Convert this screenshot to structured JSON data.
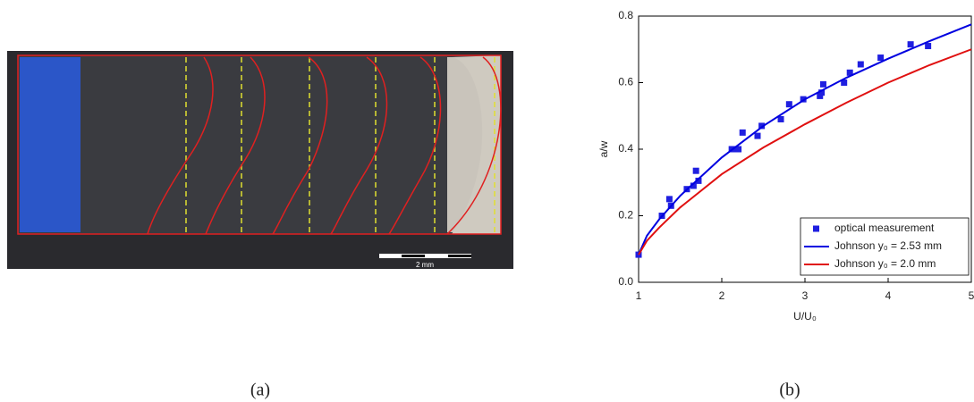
{
  "figure": {
    "scale_bar": "2 mm",
    "panel_a": "(a)",
    "panel_b": "(b)"
  },
  "chart_data": {
    "type": "scatter",
    "x_label": "U/U₀",
    "y_label": "a/w",
    "xlim": [
      1,
      5
    ],
    "xticks": [
      1,
      2,
      3,
      4,
      5
    ],
    "ylim": [
      0,
      0.8
    ],
    "yticks": [
      {
        "value": 0,
        "label": "0.0"
      },
      0.2,
      0.4,
      0.6,
      0.8
    ],
    "legend": "lower right",
    "series": [
      {
        "name": "optical measurement",
        "mode": "markers",
        "color": "#1f1fe0",
        "x": [
          1.0,
          1.28,
          1.37,
          1.39,
          1.58,
          1.66,
          1.69,
          1.72,
          2.12,
          2.16,
          2.2,
          2.25,
          2.43,
          2.48,
          2.71,
          2.81,
          2.98,
          3.18,
          3.2,
          3.22,
          3.47,
          3.54,
          3.67,
          3.91,
          4.27,
          4.48
        ],
        "values": [
          0.083,
          0.2,
          0.25,
          0.23,
          0.28,
          0.29,
          0.335,
          0.305,
          0.4,
          0.4,
          0.4,
          0.45,
          0.44,
          0.47,
          0.49,
          0.535,
          0.55,
          0.56,
          0.57,
          0.595,
          0.6,
          0.63,
          0.655,
          0.675,
          0.715,
          0.71
        ]
      },
      {
        "name": "Johnson y₀ = 2.53 mm",
        "mode": "line",
        "color": "#0000e0",
        "x": [
          1,
          1.1,
          1.25,
          1.5,
          2,
          2.5,
          3,
          3.5,
          4,
          4.5,
          5
        ],
        "values": [
          0.083,
          0.14,
          0.19,
          0.26,
          0.375,
          0.47,
          0.55,
          0.615,
          0.672,
          0.725,
          0.775
        ]
      },
      {
        "name": "Johnson y₀ = 2.0 mm",
        "mode": "line",
        "color": "#e01010",
        "x": [
          1,
          1.1,
          1.25,
          1.5,
          2,
          2.5,
          3,
          3.5,
          4,
          4.5,
          5
        ],
        "values": [
          0.083,
          0.125,
          0.165,
          0.225,
          0.325,
          0.405,
          0.475,
          0.54,
          0.6,
          0.653,
          0.7
        ]
      }
    ]
  }
}
